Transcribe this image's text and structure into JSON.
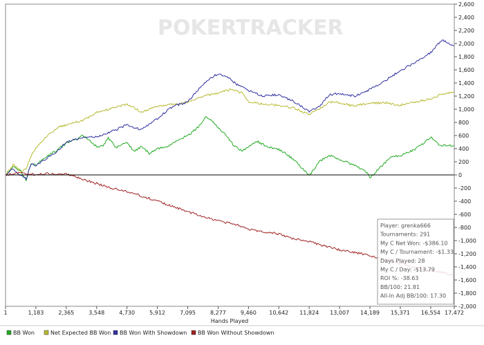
{
  "watermark": "POKERTRACKER",
  "chart_data": {
    "type": "line",
    "xlabel": "Hands Played",
    "ylabel": "",
    "x_ticks": [
      1,
      1183,
      2365,
      3548,
      4730,
      5912,
      7095,
      8277,
      9460,
      10642,
      11824,
      13007,
      14189,
      15371,
      16554,
      17472
    ],
    "x_tick_labels": [
      "1",
      "1,183",
      "2,365",
      "3,548",
      "4,730",
      "5,912",
      "7,095",
      "8,277",
      "9,460",
      "10,642",
      "11,824",
      "13,007",
      "14,189",
      "15,371",
      "16,554",
      "17,472"
    ],
    "xlim": [
      1,
      17472
    ],
    "y_ticks": [
      -2000,
      -1800,
      -1600,
      -1400,
      -1200,
      -1000,
      -800,
      -600,
      -400,
      -200,
      0,
      200,
      400,
      600,
      800,
      1000,
      1200,
      1400,
      1600,
      1800,
      2000,
      2200,
      2400,
      2600
    ],
    "y_tick_labels": [
      "-2,000",
      "-1,800",
      "-1,600",
      "-1,400",
      "-1,200",
      "-1,000",
      "-800",
      "-600",
      "-400",
      "-200",
      "0",
      "200",
      "400",
      "600",
      "800",
      "1,000",
      "1,200",
      "1,400",
      "1,600",
      "1,800",
      "2,000",
      "2,200",
      "2,400",
      "2,600"
    ],
    "ylim": [
      -2000,
      2600
    ],
    "grid": false,
    "legend_position": "bottom",
    "series": [
      {
        "name": "BB Won",
        "color": "#22aa22",
        "points": [
          [
            1,
            0
          ],
          [
            300,
            120
          ],
          [
            600,
            60
          ],
          [
            800,
            -80
          ],
          [
            1000,
            180
          ],
          [
            1183,
            150
          ],
          [
            1500,
            250
          ],
          [
            2000,
            380
          ],
          [
            2365,
            480
          ],
          [
            2800,
            550
          ],
          [
            3000,
            600
          ],
          [
            3300,
            520
          ],
          [
            3548,
            430
          ],
          [
            3800,
            440
          ],
          [
            4000,
            560
          ],
          [
            4300,
            420
          ],
          [
            4730,
            500
          ],
          [
            5000,
            360
          ],
          [
            5300,
            430
          ],
          [
            5600,
            330
          ],
          [
            5912,
            400
          ],
          [
            6300,
            430
          ],
          [
            6800,
            560
          ],
          [
            7095,
            590
          ],
          [
            7500,
            730
          ],
          [
            7800,
            890
          ],
          [
            8000,
            840
          ],
          [
            8277,
            720
          ],
          [
            8600,
            600
          ],
          [
            8900,
            440
          ],
          [
            9200,
            370
          ],
          [
            9460,
            420
          ],
          [
            9800,
            510
          ],
          [
            10200,
            430
          ],
          [
            10642,
            390
          ],
          [
            11000,
            300
          ],
          [
            11400,
            170
          ],
          [
            11824,
            -20
          ],
          [
            12200,
            200
          ],
          [
            12600,
            300
          ],
          [
            13007,
            230
          ],
          [
            13500,
            160
          ],
          [
            14000,
            60
          ],
          [
            14189,
            -40
          ],
          [
            14500,
            80
          ],
          [
            15000,
            270
          ],
          [
            15371,
            300
          ],
          [
            15900,
            380
          ],
          [
            16300,
            490
          ],
          [
            16554,
            580
          ],
          [
            16900,
            460
          ],
          [
            17472,
            440
          ]
        ]
      },
      {
        "name": "Net Expected BB Won",
        "color": "#b8b830",
        "points": [
          [
            1,
            0
          ],
          [
            300,
            150
          ],
          [
            600,
            60
          ],
          [
            800,
            100
          ],
          [
            1000,
            290
          ],
          [
            1183,
            410
          ],
          [
            1500,
            550
          ],
          [
            2000,
            720
          ],
          [
            2365,
            760
          ],
          [
            3000,
            830
          ],
          [
            3548,
            950
          ],
          [
            4000,
            1000
          ],
          [
            4730,
            1080
          ],
          [
            5300,
            960
          ],
          [
            5912,
            1040
          ],
          [
            6500,
            1080
          ],
          [
            7095,
            1100
          ],
          [
            7500,
            1180
          ],
          [
            8277,
            1250
          ],
          [
            8800,
            1300
          ],
          [
            9200,
            1250
          ],
          [
            9460,
            1120
          ],
          [
            10000,
            1080
          ],
          [
            10642,
            1060
          ],
          [
            11200,
            1020
          ],
          [
            11824,
            920
          ],
          [
            12200,
            1000
          ],
          [
            12600,
            1110
          ],
          [
            13007,
            1100
          ],
          [
            13500,
            1050
          ],
          [
            14189,
            1090
          ],
          [
            14800,
            1100
          ],
          [
            15371,
            1060
          ],
          [
            15800,
            1100
          ],
          [
            16554,
            1160
          ],
          [
            17000,
            1230
          ],
          [
            17472,
            1260
          ]
        ]
      },
      {
        "name": "BB Won With Showdown",
        "color": "#3030a0",
        "points": [
          [
            1,
            0
          ],
          [
            300,
            100
          ],
          [
            600,
            -20
          ],
          [
            800,
            -60
          ],
          [
            1000,
            170
          ],
          [
            1183,
            150
          ],
          [
            1500,
            230
          ],
          [
            2000,
            360
          ],
          [
            2365,
            500
          ],
          [
            3000,
            560
          ],
          [
            3548,
            580
          ],
          [
            4000,
            640
          ],
          [
            4730,
            760
          ],
          [
            5300,
            690
          ],
          [
            5912,
            860
          ],
          [
            6500,
            1040
          ],
          [
            7095,
            1110
          ],
          [
            7500,
            1300
          ],
          [
            8000,
            1480
          ],
          [
            8277,
            1540
          ],
          [
            8600,
            1500
          ],
          [
            9000,
            1380
          ],
          [
            9460,
            1290
          ],
          [
            10000,
            1200
          ],
          [
            10642,
            1220
          ],
          [
            11200,
            1120
          ],
          [
            11824,
            970
          ],
          [
            12200,
            1030
          ],
          [
            12600,
            1220
          ],
          [
            13007,
            1240
          ],
          [
            13600,
            1200
          ],
          [
            14189,
            1300
          ],
          [
            14800,
            1440
          ],
          [
            15371,
            1590
          ],
          [
            16000,
            1720
          ],
          [
            16554,
            1860
          ],
          [
            17000,
            2060
          ],
          [
            17472,
            1960
          ]
        ]
      },
      {
        "name": "BB Won Without Showdown",
        "color": "#a02020",
        "points": [
          [
            1,
            0
          ],
          [
            300,
            20
          ],
          [
            600,
            30
          ],
          [
            800,
            20
          ],
          [
            1000,
            10
          ],
          [
            1183,
            0
          ],
          [
            1500,
            20
          ],
          [
            2000,
            10
          ],
          [
            2365,
            20
          ],
          [
            2800,
            -40
          ],
          [
            3548,
            -130
          ],
          [
            4000,
            -190
          ],
          [
            4730,
            -250
          ],
          [
            5300,
            -320
          ],
          [
            5912,
            -400
          ],
          [
            6500,
            -480
          ],
          [
            7095,
            -560
          ],
          [
            7800,
            -640
          ],
          [
            8277,
            -700
          ],
          [
            9000,
            -760
          ],
          [
            9460,
            -830
          ],
          [
            10000,
            -860
          ],
          [
            10642,
            -900
          ],
          [
            11200,
            -970
          ],
          [
            11824,
            -1010
          ],
          [
            12400,
            -1080
          ],
          [
            13007,
            -1140
          ],
          [
            13600,
            -1180
          ],
          [
            14189,
            -1230
          ],
          [
            14800,
            -1290
          ],
          [
            15371,
            -1350
          ],
          [
            16000,
            -1410
          ],
          [
            16554,
            -1460
          ],
          [
            17000,
            -1490
          ],
          [
            17472,
            -1530
          ]
        ]
      }
    ]
  },
  "info_box": {
    "lines": [
      "Player: grenka666",
      "Tournaments: 291",
      "My C Net Won: -$386.10",
      "My C / Tournament: -$1.33",
      "Days Played: 28",
      "My C / Day: -$13.79",
      "ROI %: -38.63",
      "BB/100: 21.81",
      "All-In Adj BB/100: 17.30"
    ]
  }
}
